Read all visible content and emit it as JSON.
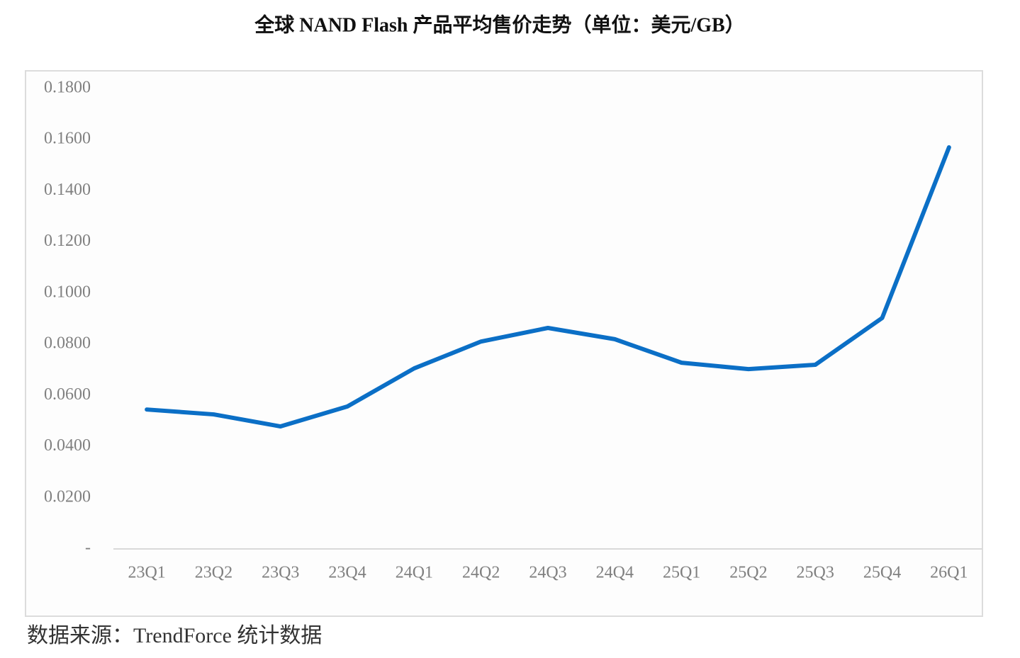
{
  "chart_data": {
    "type": "line",
    "title": "全球 NAND Flash 产品平均售价走势（单位：美元/GB）",
    "source": "数据来源：TrendForce 统计数据",
    "categories": [
      "23Q1",
      "23Q2",
      "23Q3",
      "23Q4",
      "24Q1",
      "24Q2",
      "24Q3",
      "24Q4",
      "25Q1",
      "25Q2",
      "25Q3",
      "25Q4",
      "26Q1"
    ],
    "values": [
      0.0545,
      0.0526,
      0.0479,
      0.0557,
      0.0706,
      0.0811,
      0.0864,
      0.082,
      0.0728,
      0.0703,
      0.072,
      0.0903,
      0.157
    ],
    "color": "#0b6fc6",
    "ylim": [
      0,
      0.18
    ],
    "yticks": [
      {
        "value": 0,
        "label": "-"
      },
      {
        "value": 0.02,
        "label": "0.0200"
      },
      {
        "value": 0.04,
        "label": "0.0400"
      },
      {
        "value": 0.06,
        "label": "0.0600"
      },
      {
        "value": 0.08,
        "label": "0.0800"
      },
      {
        "value": 0.1,
        "label": "0.1000"
      },
      {
        "value": 0.12,
        "label": "0.1200"
      },
      {
        "value": 0.14,
        "label": "0.1400"
      },
      {
        "value": 0.16,
        "label": "0.1600"
      },
      {
        "value": 0.18,
        "label": "0.1800"
      }
    ],
    "grid": false
  }
}
